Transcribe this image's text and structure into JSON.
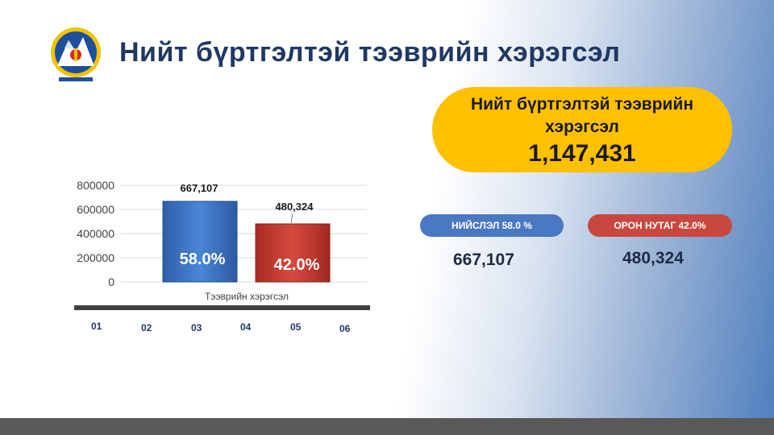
{
  "header": {
    "title": "Нийт бүртгэлтэй тээврийн хэрэгсэл"
  },
  "summary": {
    "label": "Нийт бүртгэлтэй тээврийн хэрэгсэл",
    "total": "1,147,431",
    "capital": {
      "label": "НИЙСЛЭЛ 58.0 %",
      "value": "667,107",
      "color": "#4a78c2"
    },
    "rural": {
      "label": "ОРОН НУТАГ 42.0%",
      "value": "480,324",
      "color": "#c9473f"
    }
  },
  "chart_data": {
    "type": "bar",
    "categories": [
      "Тээврийн хэрэгсэл"
    ],
    "xlabel": "Тээврийн хэрэгсэл",
    "ylim": [
      0,
      800000
    ],
    "yticks": [
      "0",
      "200000",
      "400000",
      "600000",
      "800000"
    ],
    "grid": true,
    "series": [
      {
        "values": [
          667107
        ],
        "data_label": "667,107",
        "share_label": "58.0%",
        "color": "#3a6fc4"
      },
      {
        "values": [
          480324
        ],
        "data_label": "480,324",
        "share_label": "42.0%",
        "color": "#c0342b"
      }
    ]
  },
  "bottom_axis": {
    "labels": [
      "01",
      "02",
      "03",
      "04",
      "05",
      "06"
    ]
  }
}
